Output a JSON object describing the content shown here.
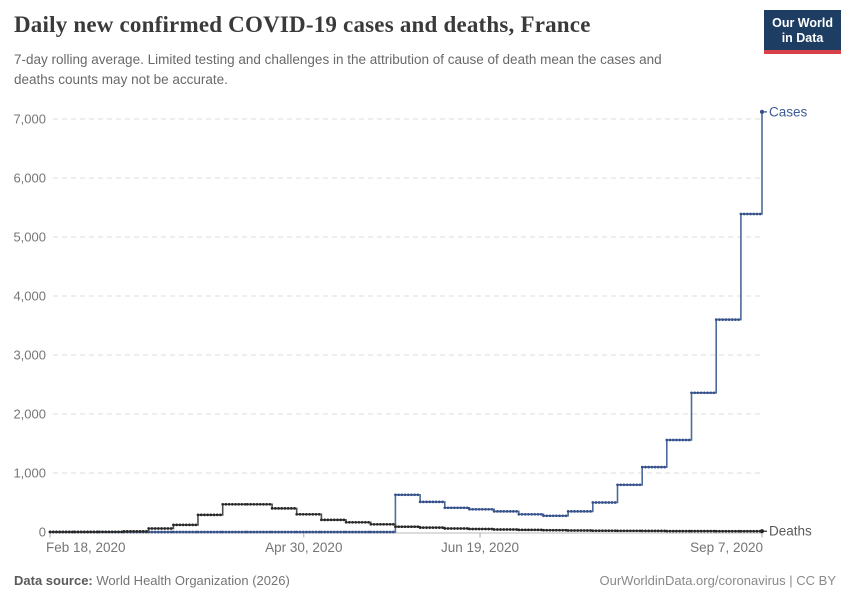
{
  "header": {
    "title": "Daily new confirmed COVID-19 cases and deaths, France",
    "subtitle": "7-day rolling average. Limited testing and challenges in the attribution of cause of death mean the cases and deaths counts may not be accurate.",
    "logo": {
      "line1": "Our World",
      "line2": "in Data",
      "bg_color": "#1d3d63",
      "accent_color": "#d8404a"
    }
  },
  "footer": {
    "source_label": "Data source:",
    "source_value": " World Health Organization (2026)",
    "right_text": "OurWorldinData.org/coronavirus | CC BY"
  },
  "chart_data": {
    "type": "line",
    "step": true,
    "title": "Daily new confirmed COVID-19 cases and deaths, France",
    "xlabel": "",
    "ylabel": "",
    "ylim": [
      0,
      7000
    ],
    "yticks": [
      0,
      1000,
      2000,
      3000,
      4000,
      5000,
      6000,
      7000
    ],
    "ytick_labels": [
      "0",
      "1,000",
      "2,000",
      "3,000",
      "4,000",
      "5,000",
      "6,000",
      "7,000"
    ],
    "grid": "horizontal-dashed",
    "legend_position": "end-of-line-labels",
    "x_dates": [
      "Feb 18, 2020",
      "Feb 25, 2020",
      "Mar 3, 2020",
      "Mar 10, 2020",
      "Mar 17, 2020",
      "Mar 24, 2020",
      "Mar 31, 2020",
      "Apr 7, 2020",
      "Apr 14, 2020",
      "Apr 21, 2020",
      "Apr 28, 2020",
      "May 5, 2020",
      "May 12, 2020",
      "May 19, 2020",
      "May 26, 2020",
      "Jun 2, 2020",
      "Jun 9, 2020",
      "Jun 16, 2020",
      "Jun 23, 2020",
      "Jun 30, 2020",
      "Jul 7, 2020",
      "Jul 14, 2020",
      "Jul 21, 2020",
      "Jul 28, 2020",
      "Aug 4, 2020",
      "Aug 11, 2020",
      "Aug 18, 2020",
      "Aug 25, 2020",
      "Sep 1, 2020",
      "Sep 7, 2020"
    ],
    "x_day_offsets": [
      0,
      7,
      14,
      21,
      28,
      35,
      42,
      49,
      56,
      63,
      70,
      77,
      84,
      91,
      98,
      105,
      112,
      119,
      126,
      133,
      140,
      147,
      154,
      161,
      168,
      175,
      182,
      189,
      196,
      202
    ],
    "xticks": [
      {
        "label": "Feb 18, 2020",
        "day": 0,
        "align": "start"
      },
      {
        "label": "Apr 30, 2020",
        "day": 72,
        "align": "middle"
      },
      {
        "label": "Jun 19, 2020",
        "day": 122,
        "align": "middle"
      },
      {
        "label": "Sep 7, 2020",
        "day": 202,
        "align": "end"
      }
    ],
    "series": [
      {
        "name": "Cases",
        "line_color": "#4c6a9c",
        "dot_color": "#35508a",
        "label_color": "#3d5c96",
        "values": [
          0,
          0,
          0,
          0,
          0,
          0,
          0,
          0,
          0,
          0,
          0,
          0,
          0,
          0,
          630,
          510,
          410,
          385,
          350,
          300,
          275,
          350,
          500,
          800,
          1100,
          1560,
          2360,
          3600,
          5390,
          7120
        ]
      },
      {
        "name": "Deaths",
        "line_color": "#4f4f4f",
        "dot_color": "#262626",
        "label_color": "#595959",
        "values": [
          2,
          2,
          4,
          10,
          60,
          120,
          290,
          470,
          470,
          400,
          300,
          205,
          165,
          130,
          90,
          75,
          60,
          50,
          42,
          35,
          30,
          26,
          22,
          20,
          18,
          16,
          15,
          14,
          14,
          14
        ]
      }
    ]
  }
}
